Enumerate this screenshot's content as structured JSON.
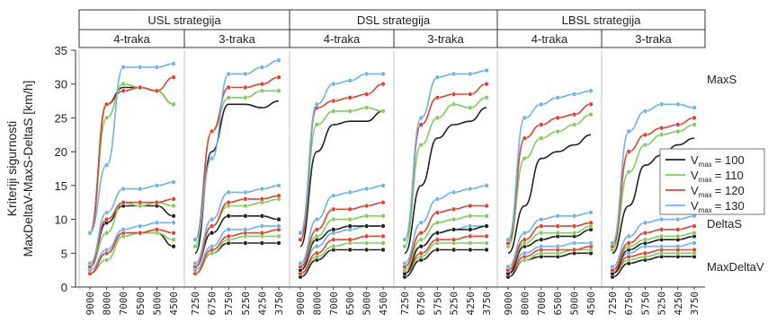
{
  "chart_data": {
    "type": "line",
    "ylabel_lines": [
      "Kriteriji sigurnosti",
      "MaxDeltaV-MaxS-DeltaS [km/h]"
    ],
    "ylim": [
      0,
      35
    ],
    "yticks": [
      0,
      5,
      10,
      15,
      20,
      25,
      30,
      35
    ],
    "grid": false,
    "strategies": [
      "USL strategija",
      "DSL strategija",
      "LBSL strategija"
    ],
    "lane_labels": [
      "4-traka",
      "3-traka"
    ],
    "annotations": [
      "MaxS",
      "DeltaS",
      "MaxDeltaV"
    ],
    "legend": {
      "position": "right",
      "entries": [
        {
          "label": "= 100",
          "symbol": "V",
          "sub": "max",
          "color": "#222222"
        },
        {
          "label": "= 110",
          "symbol": "V",
          "sub": "max",
          "color": "#7ccf5a"
        },
        {
          "label": "= 120",
          "symbol": "V",
          "sub": "max",
          "color": "#e8402c"
        },
        {
          "label": "= 130",
          "symbol": "V",
          "sub": "max",
          "color": "#6bb3ee"
        }
      ]
    },
    "series_colors": {
      "100": "#222222",
      "110": "#7ccf5a",
      "120": "#e8402c",
      "130": "#6bb3ee"
    },
    "panels": [
      {
        "strategy": "USL strategija",
        "lanes": "4-traka",
        "x": [
          "9000",
          "8000",
          "7000",
          "6500",
          "5000",
          "4500"
        ],
        "series": {
          "100": {
            "MaxS": [
              8,
              27,
              29.5,
              29.5,
              29,
              27
            ],
            "DeltaS": [
              3,
              9.5,
              12,
              12,
              12,
              10.5
            ],
            "MaxDeltaV": [
              2,
              5,
              8,
              8,
              8,
              6
            ]
          },
          "110": {
            "MaxS": [
              8,
              25,
              30,
              29.5,
              29,
              27
            ],
            "DeltaS": [
              3,
              8,
              12.5,
              12,
              12.5,
              12
            ],
            "MaxDeltaV": [
              2,
              4,
              7.5,
              8,
              8,
              7
            ]
          },
          "120": {
            "MaxS": [
              8,
              27,
              29,
              29.5,
              29,
              31
            ],
            "DeltaS": [
              3,
              10,
              12.5,
              12.5,
              12.5,
              13
            ],
            "MaxDeltaV": [
              2,
              5,
              8,
              8,
              8.5,
              8
            ]
          },
          "130": {
            "MaxS": [
              8,
              18,
              32.5,
              32.5,
              32.5,
              33
            ],
            "DeltaS": [
              3.5,
              11,
              14.5,
              14.5,
              15,
              15.5
            ],
            "MaxDeltaV": [
              2.5,
              5.5,
              8.5,
              9,
              9.5,
              9.5
            ]
          }
        }
      },
      {
        "strategy": "USL strategija",
        "lanes": "3-traka",
        "x": [
          "7250",
          "6750",
          "5750",
          "5250",
          "4250",
          "3750"
        ],
        "series": {
          "100": {
            "MaxS": [
              5,
              20,
              27,
              27,
              26.5,
              27.5
            ],
            "DeltaS": [
              3,
              8,
              10.5,
              10.5,
              10.5,
              10
            ],
            "MaxDeltaV": [
              2,
              5,
              6.5,
              6.5,
              6.5,
              6.5
            ]
          },
          "110": {
            "MaxS": [
              6,
              23,
              28,
              28,
              29,
              29
            ],
            "DeltaS": [
              3,
              9,
              12,
              12,
              12.5,
              13
            ],
            "MaxDeltaV": [
              2,
              5,
              7,
              7.5,
              7.5,
              7.5
            ]
          },
          "120": {
            "MaxS": [
              7,
              23,
              29.5,
              29.5,
              30,
              31
            ],
            "DeltaS": [
              3,
              9,
              12.5,
              13,
              13,
              13.5
            ],
            "MaxDeltaV": [
              2,
              5.5,
              7.5,
              8,
              8,
              8.5
            ]
          },
          "130": {
            "MaxS": [
              7,
              19,
              31.5,
              31.5,
              32.5,
              33.5
            ],
            "DeltaS": [
              3.5,
              10,
              14,
              14,
              14.5,
              15
            ],
            "MaxDeltaV": [
              2.5,
              6,
              8.5,
              8.5,
              9,
              9
            ]
          }
        }
      },
      {
        "strategy": "DSL strategija",
        "lanes": "4-traka",
        "x": [
          "9000",
          "8000",
          "7000",
          "6500",
          "5000",
          "4500"
        ],
        "series": {
          "100": {
            "MaxS": [
              6,
              20,
              24,
              24.5,
              24.5,
              26
            ],
            "DeltaS": [
              2.5,
              7,
              8.5,
              9,
              9,
              9
            ],
            "MaxDeltaV": [
              1.5,
              4,
              5.5,
              5.5,
              5.5,
              5.5
            ]
          },
          "110": {
            "MaxS": [
              7,
              24,
              26,
              26,
              26.5,
              26
            ],
            "DeltaS": [
              3,
              7.5,
              10,
              10,
              10.5,
              10.5
            ],
            "MaxDeltaV": [
              2,
              4.5,
              6,
              6.5,
              6.5,
              6.5
            ]
          },
          "120": {
            "MaxS": [
              7,
              26.5,
              27.5,
              28,
              28.5,
              30
            ],
            "DeltaS": [
              3,
              8.5,
              11.5,
              11.5,
              12,
              12.5
            ],
            "MaxDeltaV": [
              2,
              5,
              7,
              7,
              7.5,
              7.5
            ]
          },
          "130": {
            "MaxS": [
              8,
              27,
              30,
              30.5,
              31.5,
              31.5
            ],
            "DeltaS": [
              3.5,
              10,
              13.5,
              14,
              14.5,
              15
            ],
            "MaxDeltaV": [
              2.5,
              6,
              8,
              8.5,
              9,
              9
            ]
          }
        }
      },
      {
        "strategy": "DSL strategija",
        "lanes": "3-traka",
        "x": [
          "7250",
          "6750",
          "5750",
          "5250",
          "4250",
          "3750"
        ],
        "series": {
          "100": {
            "MaxS": [
              5,
              15,
              22,
              24,
              24.5,
              26.5
            ],
            "DeltaS": [
              2,
              6,
              8,
              8.5,
              8.5,
              9
            ],
            "MaxDeltaV": [
              1.5,
              4,
              5.5,
              5.5,
              5.5,
              5.5
            ]
          },
          "110": {
            "MaxS": [
              6,
              21,
              25,
              27,
              26.5,
              28
            ],
            "DeltaS": [
              2.5,
              7,
              9.5,
              10,
              10.5,
              10.5
            ],
            "MaxDeltaV": [
              2,
              4.5,
              6.5,
              6.5,
              6.5,
              6.5
            ]
          },
          "120": {
            "MaxS": [
              7,
              24,
              28,
              28.5,
              28.5,
              30
            ],
            "DeltaS": [
              3,
              8,
              11,
              11.5,
              12,
              12
            ],
            "MaxDeltaV": [
              2,
              5,
              7,
              7,
              7.5,
              7.5
            ]
          },
          "130": {
            "MaxS": [
              7,
              25,
              31,
              31.5,
              31.5,
              32
            ],
            "DeltaS": [
              3.5,
              9.5,
              13,
              14,
              14.5,
              15
            ],
            "MaxDeltaV": [
              2.5,
              6,
              8,
              8.5,
              9,
              9
            ]
          }
        }
      },
      {
        "strategy": "LBSL strategija",
        "lanes": "4-traka",
        "x": [
          "9000",
          "8000",
          "7000",
          "6500",
          "5000",
          "4500"
        ],
        "series": {
          "100": {
            "MaxS": [
              5,
              12,
              19,
              20,
              21,
              22.5
            ],
            "DeltaS": [
              2,
              6,
              7,
              7.5,
              7.5,
              8.5
            ],
            "MaxDeltaV": [
              1.5,
              4,
              4.5,
              4.5,
              5,
              5
            ]
          },
          "110": {
            "MaxS": [
              6,
              19,
              22,
              23,
              24,
              25.5
            ],
            "DeltaS": [
              2.5,
              6.5,
              8,
              8,
              8,
              9
            ],
            "MaxDeltaV": [
              2,
              4,
              5,
              5,
              5.5,
              5.5
            ]
          },
          "120": {
            "MaxS": [
              6.5,
              22,
              24,
              25,
              25.5,
              27
            ],
            "DeltaS": [
              2.5,
              7,
              9,
              9,
              9,
              9.5
            ],
            "MaxDeltaV": [
              2,
              4.5,
              5.5,
              5.5,
              5.5,
              6
            ]
          },
          "130": {
            "MaxS": [
              7,
              25,
              27,
              28,
              28.5,
              29
            ],
            "DeltaS": [
              3,
              8,
              10,
              10.5,
              10.5,
              11
            ],
            "MaxDeltaV": [
              2.5,
              5,
              6,
              6,
              6.5,
              6.5
            ]
          }
        }
      },
      {
        "strategy": "LBSL strategija",
        "lanes": "3-traka",
        "x": [
          "7250",
          "6750",
          "5750",
          "5250",
          "4250",
          "3750"
        ],
        "series": {
          "100": {
            "MaxS": [
              5,
              12,
              18,
              19.5,
              21,
              22
            ],
            "DeltaS": [
              2,
              5.5,
              6.5,
              7,
              7,
              7.5
            ],
            "MaxDeltaV": [
              1.5,
              3.5,
              4,
              4.5,
              4.5,
              4.5
            ]
          },
          "110": {
            "MaxS": [
              5.5,
              17,
              21,
              22.5,
              23,
              24
            ],
            "DeltaS": [
              2.5,
              6,
              7,
              7.5,
              7.5,
              8
            ],
            "MaxDeltaV": [
              2,
              4,
              4.5,
              5,
              5,
              5
            ]
          },
          "120": {
            "MaxS": [
              6,
              20,
              22.5,
              23.5,
              24,
              25
            ],
            "DeltaS": [
              2.5,
              6.5,
              8,
              8.5,
              8.5,
              9
            ],
            "MaxDeltaV": [
              2,
              4.5,
              5,
              5.5,
              5.5,
              5.5
            ]
          },
          "130": {
            "MaxS": [
              6.5,
              23,
              26,
              27,
              27,
              26.5
            ],
            "DeltaS": [
              3,
              7.5,
              9.5,
              10,
              10,
              10.5
            ],
            "MaxDeltaV": [
              2.5,
              5,
              6,
              6,
              6,
              6.5
            ]
          }
        }
      }
    ]
  }
}
